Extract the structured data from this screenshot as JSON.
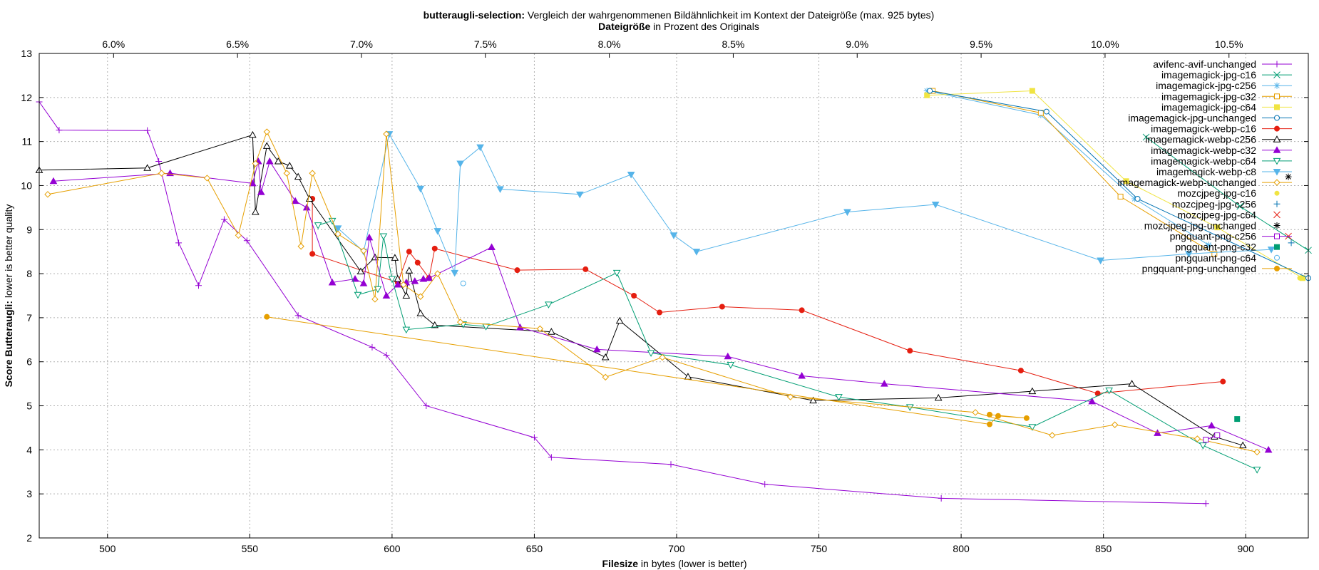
{
  "chart_data": {
    "type": "line",
    "title": {
      "bold": "butteraugli-selection:",
      "rest": " Vergleich der wahrgenommenen Bildähnlichkeit im Kontext der Dateigröße (max. 925 bytes)"
    },
    "x2label": {
      "bold": "Dateigröße",
      "rest": " in Prozent des Originals"
    },
    "xlabel": {
      "bold": "Filesize",
      "rest": " in bytes (lower is better)"
    },
    "ylabel": {
      "bold": "Score Butteraugli:",
      "rest": " lower is better quality"
    },
    "xlim": [
      476,
      922
    ],
    "ylim": [
      2,
      13
    ],
    "x2lim": [
      5.7,
      10.82
    ],
    "x_ticks": [
      "500",
      "550",
      "600",
      "650",
      "700",
      "750",
      "800",
      "850",
      "900"
    ],
    "x_tick_values": [
      500,
      550,
      600,
      650,
      700,
      750,
      800,
      850,
      900
    ],
    "y_ticks": [
      "2",
      "3",
      "4",
      "5",
      "6",
      "7",
      "8",
      "9",
      "10",
      "11",
      "12",
      "13"
    ],
    "y_tick_values": [
      2,
      3,
      4,
      5,
      6,
      7,
      8,
      9,
      10,
      11,
      12,
      13
    ],
    "x2_ticks": [
      "6.0%",
      "6.5%",
      "7.0%",
      "7.5%",
      "8.0%",
      "8.5%",
      "9.0%",
      "9.5%",
      "10.0%",
      "10.5%"
    ],
    "x2_tick_values": [
      6.0,
      6.5,
      7.0,
      7.5,
      8.0,
      8.5,
      9.0,
      9.5,
      10.0,
      10.5
    ],
    "grid": true,
    "legend_position": "top-right",
    "series": [
      {
        "name": "avifenc-avif-unchanged",
        "color": "#9400d3",
        "marker": "plus",
        "points": [
          [
            476,
            11.9
          ],
          [
            483,
            11.26
          ],
          [
            514,
            11.25
          ],
          [
            518,
            10.55
          ],
          [
            525,
            8.7
          ],
          [
            532,
            7.73
          ],
          [
            541,
            9.23
          ],
          [
            549,
            8.75
          ],
          [
            567,
            7.05
          ],
          [
            593,
            6.33
          ],
          [
            598,
            6.15
          ],
          [
            612,
            5.0
          ],
          [
            650,
            4.28
          ],
          [
            656,
            3.83
          ],
          [
            698,
            3.67
          ],
          [
            731,
            3.22
          ],
          [
            793,
            2.9
          ],
          [
            886,
            2.78
          ]
        ]
      },
      {
        "name": "imagemagick-jpg-c16",
        "color": "#009e73",
        "marker": "cross",
        "points": [
          [
            865,
            11.1
          ],
          [
            898,
            9.53
          ],
          [
            922,
            8.53
          ]
        ]
      },
      {
        "name": "imagemagick-jpg-c256",
        "color": "#56b4e9",
        "marker": "star",
        "points": [
          [
            788,
            12.15
          ],
          [
            828,
            11.6
          ],
          [
            861,
            9.7
          ],
          [
            887,
            8.65
          ]
        ]
      },
      {
        "name": "imagemagick-jpg-c32",
        "color": "#e69f00",
        "marker": "square",
        "points": [
          [
            790,
            12.15
          ],
          [
            828,
            11.65
          ],
          [
            856,
            9.75
          ],
          [
            889,
            8.45
          ]
        ]
      },
      {
        "name": "imagemagick-jpg-c64",
        "color": "#f0e442",
        "marker": "filled-square",
        "points": [
          [
            788,
            12.05
          ],
          [
            825,
            12.15
          ],
          [
            858,
            10.1
          ],
          [
            890,
            9.05
          ],
          [
            920,
            7.9
          ]
        ]
      },
      {
        "name": "imagemagick-jpg-unchanged",
        "color": "#0072b2",
        "marker": "circle",
        "points": [
          [
            789,
            12.15
          ],
          [
            830,
            11.68
          ],
          [
            862,
            9.7
          ],
          [
            922,
            7.9
          ]
        ]
      },
      {
        "name": "imagemagick-webp-c16",
        "color": "#e51e10",
        "marker": "filled-circle",
        "points": [
          [
            572,
            9.7
          ],
          [
            572,
            8.45
          ],
          [
            602,
            7.8
          ],
          [
            606,
            8.5
          ],
          [
            609,
            8.25
          ],
          [
            613,
            7.9
          ],
          [
            615,
            8.57
          ],
          [
            644,
            8.08
          ],
          [
            668,
            8.1
          ],
          [
            685,
            7.5
          ],
          [
            694,
            7.12
          ],
          [
            716,
            7.25
          ],
          [
            744,
            7.17
          ],
          [
            782,
            6.25
          ],
          [
            821,
            5.8
          ],
          [
            848,
            5.28
          ],
          [
            892,
            5.55
          ]
        ]
      },
      {
        "name": "imagemagick-webp-c256",
        "color": "#000000",
        "marker": "triangle",
        "points": [
          [
            476,
            10.35
          ],
          [
            514,
            10.4
          ],
          [
            551,
            11.15
          ],
          [
            552,
            9.4
          ],
          [
            556,
            10.9
          ],
          [
            560,
            10.55
          ],
          [
            564,
            10.45
          ],
          [
            567,
            10.2
          ],
          [
            571,
            9.7
          ],
          [
            589,
            8.05
          ],
          [
            594,
            8.37
          ],
          [
            601,
            8.36
          ],
          [
            602,
            7.88
          ],
          [
            605,
            7.5
          ],
          [
            606,
            8.07
          ],
          [
            610,
            7.1
          ],
          [
            615,
            6.83
          ],
          [
            656,
            6.68
          ],
          [
            675,
            6.1
          ],
          [
            680,
            6.93
          ],
          [
            704,
            5.66
          ],
          [
            748,
            5.12
          ],
          [
            792,
            5.18
          ],
          [
            825,
            5.33
          ],
          [
            860,
            5.5
          ],
          [
            889,
            4.3
          ],
          [
            899,
            4.1
          ]
        ]
      },
      {
        "name": "imagemagick-webp-c32",
        "color": "#9400d3",
        "marker": "filled-triangle",
        "points": [
          [
            481,
            10.1
          ],
          [
            522,
            10.28
          ],
          [
            551,
            10.05
          ],
          [
            553,
            10.55
          ],
          [
            554,
            9.85
          ],
          [
            557,
            10.55
          ],
          [
            566,
            9.65
          ],
          [
            570,
            9.5
          ],
          [
            579,
            7.8
          ],
          [
            587,
            7.88
          ],
          [
            590,
            7.78
          ],
          [
            592,
            8.82
          ],
          [
            598,
            7.5
          ],
          [
            602,
            7.75
          ],
          [
            605,
            7.8
          ],
          [
            608,
            7.83
          ],
          [
            611,
            7.88
          ],
          [
            613,
            7.9
          ],
          [
            635,
            8.6
          ],
          [
            645,
            6.78
          ],
          [
            672,
            6.28
          ],
          [
            718,
            6.12
          ],
          [
            744,
            5.68
          ],
          [
            773,
            5.5
          ],
          [
            846,
            5.1
          ],
          [
            869,
            4.38
          ],
          [
            888,
            4.55
          ],
          [
            908,
            4.0
          ]
        ]
      },
      {
        "name": "imagemagick-webp-c64",
        "color": "#009e73",
        "marker": "down-triangle",
        "points": [
          [
            574,
            9.1
          ],
          [
            579,
            9.2
          ],
          [
            588,
            7.52
          ],
          [
            595,
            7.65
          ],
          [
            597,
            8.85
          ],
          [
            600,
            7.88
          ],
          [
            605,
            6.73
          ],
          [
            625,
            6.85
          ],
          [
            633,
            6.8
          ],
          [
            655,
            7.3
          ],
          [
            679,
            8.02
          ],
          [
            691,
            6.2
          ],
          [
            719,
            5.93
          ],
          [
            757,
            5.2
          ],
          [
            782,
            4.97
          ],
          [
            825,
            4.52
          ],
          [
            852,
            5.35
          ],
          [
            885,
            4.1
          ],
          [
            904,
            3.55
          ]
        ]
      },
      {
        "name": "imagemagick-webp-c8",
        "color": "#56b4e9",
        "marker": "filled-down-triangle",
        "points": [
          [
            581,
            9.03
          ],
          [
            590,
            8.5
          ],
          [
            599,
            11.17
          ],
          [
            610,
            9.93
          ],
          [
            616,
            8.97
          ],
          [
            622,
            8.02
          ],
          [
            624,
            10.5
          ],
          [
            631,
            10.87
          ],
          [
            638,
            9.92
          ],
          [
            666,
            9.8
          ],
          [
            684,
            10.25
          ],
          [
            699,
            8.87
          ],
          [
            707,
            8.5
          ],
          [
            760,
            9.4
          ],
          [
            791,
            9.57
          ],
          [
            849,
            8.3
          ],
          [
            880,
            8.45
          ],
          [
            909,
            8.55
          ]
        ]
      },
      {
        "name": "imagemagick-webp-unchanged",
        "color": "#e69f00",
        "marker": "diamond",
        "points": [
          [
            479,
            9.8
          ],
          [
            519,
            10.28
          ],
          [
            535,
            10.17
          ],
          [
            546,
            8.87
          ],
          [
            552,
            10.5
          ],
          [
            556,
            11.22
          ],
          [
            563,
            10.28
          ],
          [
            568,
            8.62
          ],
          [
            572,
            10.28
          ],
          [
            581,
            8.9
          ],
          [
            590,
            8.52
          ],
          [
            594,
            7.42
          ],
          [
            598,
            11.17
          ],
          [
            604,
            7.75
          ],
          [
            610,
            7.48
          ],
          [
            616,
            8.0
          ],
          [
            624,
            6.9
          ],
          [
            652,
            6.75
          ],
          [
            675,
            5.65
          ],
          [
            695,
            6.1
          ],
          [
            740,
            5.2
          ],
          [
            805,
            4.85
          ],
          [
            832,
            4.33
          ],
          [
            854,
            4.57
          ],
          [
            883,
            4.25
          ],
          [
            904,
            3.95
          ]
        ]
      },
      {
        "name": "mozcjpeg-jpg-c16",
        "color": "#f0e442",
        "marker": "small-circle",
        "points": [
          [
            919,
            7.9
          ]
        ]
      },
      {
        "name": "mozcjpeg-jpg-c256",
        "color": "#0072b2",
        "marker": "plus",
        "points": [
          [
            916,
            8.7
          ]
        ]
      },
      {
        "name": "mozcjpeg-jpg-c64",
        "color": "#e51e10",
        "marker": "cross",
        "points": [
          [
            915,
            8.85
          ]
        ]
      },
      {
        "name": "mozcjpeg-jpg-unchanged",
        "color": "#000000",
        "marker": "star",
        "points": [
          [
            915,
            10.2
          ]
        ]
      },
      {
        "name": "pngquant-png-c256",
        "color": "#9400d3",
        "marker": "square",
        "points": [
          [
            886,
            4.23
          ],
          [
            890,
            4.33
          ]
        ]
      },
      {
        "name": "pngquant-png-c32",
        "color": "#009e73",
        "marker": "filled-square",
        "points": [
          [
            897,
            4.7
          ]
        ]
      },
      {
        "name": "pngquant-png-c64",
        "color": "#56b4e9",
        "marker": "circle",
        "points": [
          [
            625,
            7.78
          ]
        ]
      },
      {
        "name": "pngquant-png-unchanged",
        "color": "#e69f00",
        "marker": "filled-circle",
        "points": [
          [
            556,
            7.02
          ],
          [
            810,
            4.58
          ],
          [
            813,
            4.77
          ],
          [
            823,
            4.72
          ],
          [
            810,
            4.8
          ]
        ]
      }
    ]
  }
}
